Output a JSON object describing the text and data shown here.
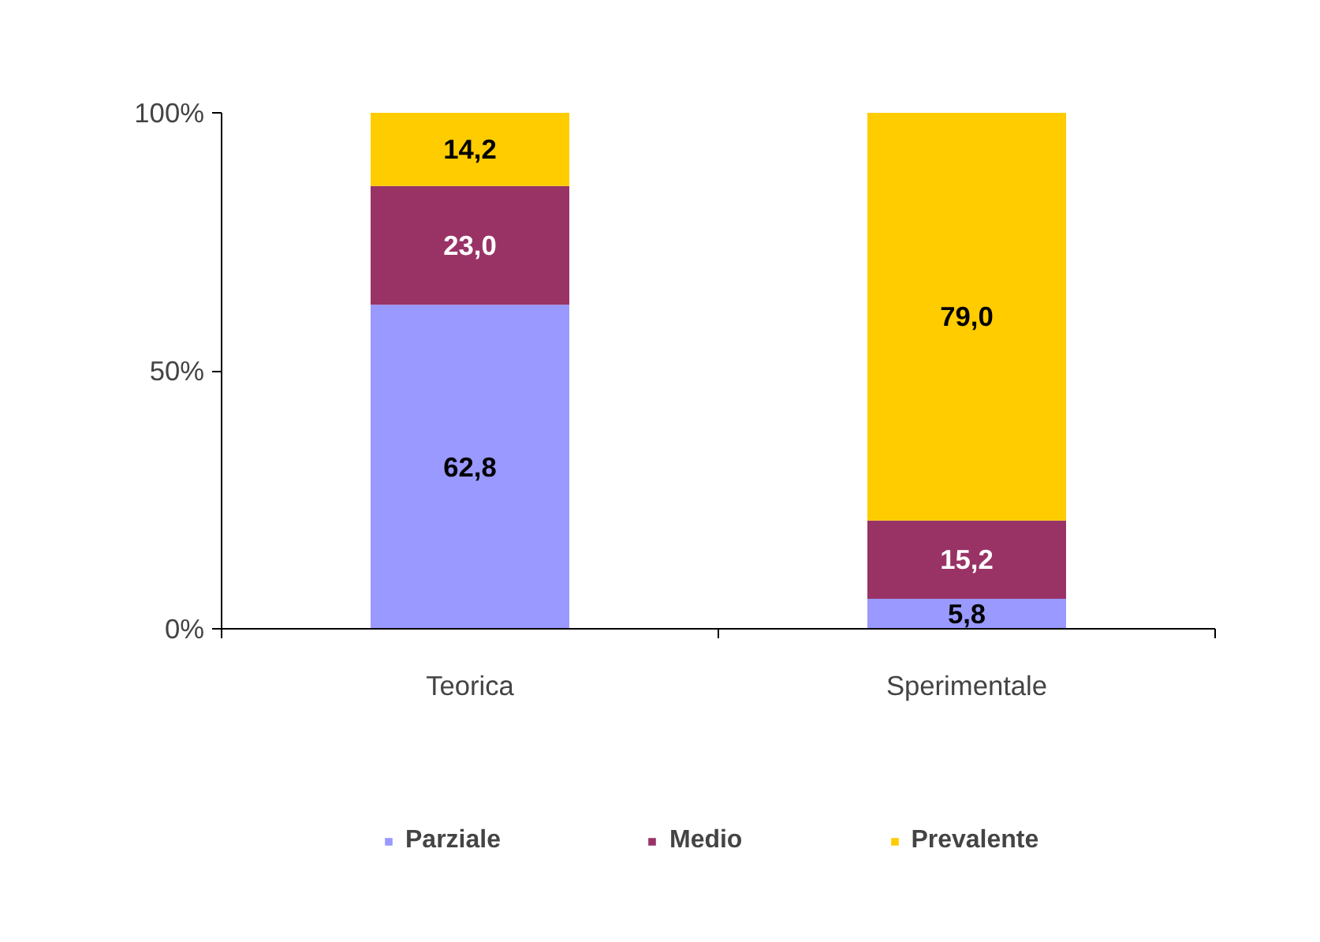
{
  "chart_data": {
    "type": "bar",
    "stacked": true,
    "categories": [
      "Teorica",
      "Sperimentale"
    ],
    "series": [
      {
        "name": "Parziale",
        "color": "#9999ff",
        "values": [
          62.8,
          5.8
        ],
        "value_labels": [
          "62,8",
          "5,8"
        ]
      },
      {
        "name": "Medio",
        "color": "#993366",
        "values": [
          23.0,
          15.2
        ],
        "value_labels": [
          "23,0",
          "15,2"
        ]
      },
      {
        "name": "Prevalente",
        "color": "#ffcc00",
        "values": [
          14.2,
          79.0
        ],
        "value_labels": [
          "14,2",
          "79,0"
        ]
      }
    ],
    "ylim": [
      0,
      100
    ],
    "yticks": [
      {
        "value": 0,
        "label": "0%"
      },
      {
        "value": 50,
        "label": "50%"
      },
      {
        "value": 100,
        "label": "100%"
      }
    ],
    "grid": false,
    "legend": "bottom"
  }
}
